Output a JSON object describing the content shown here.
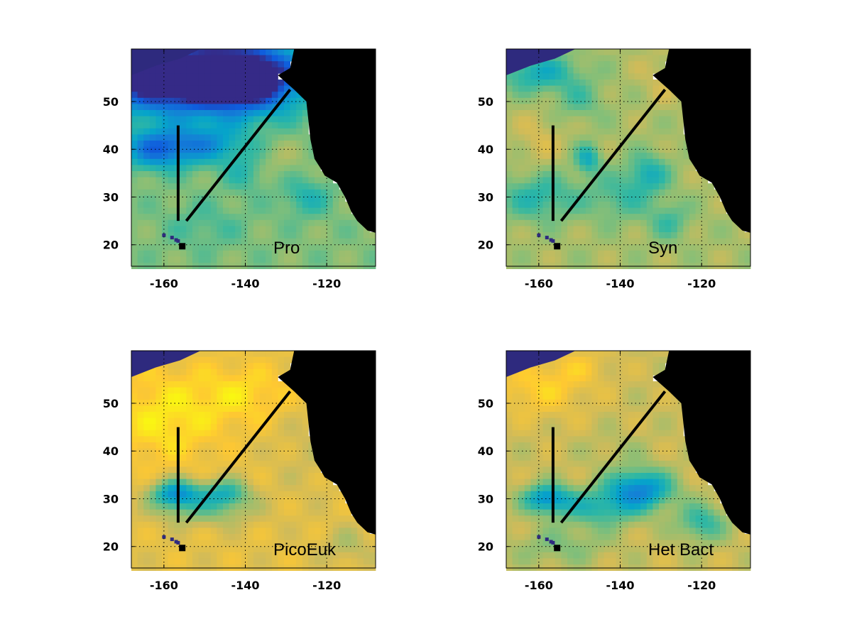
{
  "colors": {
    "colormap": [
      "#352a87",
      "#0f5cdd",
      "#1481d6",
      "#06a4ca",
      "#2eb7a4",
      "#87bf77",
      "#d1bb59",
      "#fec832",
      "#f9fb0e"
    ],
    "land": "#000000",
    "island": "#2e2a7e",
    "transect": "#000000"
  },
  "chart_data": [
    {
      "type": "heatmap",
      "title": "Pro",
      "xlim": [
        -168,
        -108
      ],
      "ylim": [
        15.5,
        61
      ],
      "xticks": [
        -160,
        -140,
        -120
      ],
      "yticks": [
        20,
        30,
        40,
        50
      ],
      "xtick_labels": [
        "-160",
        "-140",
        "-120"
      ],
      "ytick_labels": [
        "20",
        "30",
        "40",
        "50"
      ],
      "grid": true,
      "field": {
        "base": 0.62,
        "blobs": [
          {
            "lon": -160,
            "lat": 55,
            "rlon": 18,
            "rlat": 7,
            "v": -0.8
          },
          {
            "lon": -140,
            "lat": 55,
            "rlon": 14,
            "rlat": 7,
            "v": -0.8
          },
          {
            "lon": -162,
            "lat": 40,
            "rlon": 8,
            "rlat": 4,
            "v": -0.4
          },
          {
            "lon": -150,
            "lat": 41,
            "rlon": 10,
            "rlat": 4,
            "v": -0.3
          },
          {
            "lon": -140,
            "lat": 35,
            "rlon": 5,
            "rlat": 4,
            "v": -0.12
          },
          {
            "lon": -125,
            "lat": 30,
            "rlon": 6,
            "rlat": 4,
            "v": -0.15
          },
          {
            "lon": -132,
            "lat": 38,
            "rlon": 6,
            "rlat": 4,
            "v": 0.06
          },
          {
            "lon": -150,
            "lat": 24,
            "rlon": 10,
            "rlat": 5,
            "v": -0.08
          }
        ]
      },
      "transects": [
        {
          "name": "meridional",
          "points": [
            [
              -156.5,
              45
            ],
            [
              -156.5,
              25
            ]
          ]
        },
        {
          "name": "diagonal",
          "points": [
            [
              -154.5,
              25
            ],
            [
              -129,
              52.5
            ]
          ]
        }
      ]
    },
    {
      "type": "heatmap",
      "title": "Syn",
      "xlim": [
        -168,
        -108
      ],
      "ylim": [
        15.5,
        61
      ],
      "xticks": [
        -160,
        -140,
        -120
      ],
      "yticks": [
        20,
        30,
        40,
        50
      ],
      "xtick_labels": [
        "-160",
        "-140",
        "-120"
      ],
      "ytick_labels": [
        "20",
        "30",
        "40",
        "50"
      ],
      "grid": true,
      "field": {
        "base": 0.68,
        "blobs": [
          {
            "lon": -160,
            "lat": 56,
            "rlon": 10,
            "rlat": 4,
            "v": -0.25
          },
          {
            "lon": -150,
            "lat": 50,
            "rlon": 6,
            "rlat": 4,
            "v": -0.12
          },
          {
            "lon": -160,
            "lat": 30,
            "rlon": 10,
            "rlat": 5,
            "v": -0.2
          },
          {
            "lon": -140,
            "lat": 30,
            "rlon": 8,
            "rlat": 5,
            "v": -0.15
          },
          {
            "lon": -133,
            "lat": 35,
            "rlon": 5,
            "rlat": 4,
            "v": -0.22
          },
          {
            "lon": -128,
            "lat": 25,
            "rlon": 5,
            "rlat": 4,
            "v": -0.15
          },
          {
            "lon": -148,
            "lat": 38,
            "rlon": 3,
            "rlat": 3,
            "v": -0.25
          },
          {
            "lon": -160,
            "lat": 42,
            "rlon": 6,
            "rlat": 6,
            "v": 0.08
          },
          {
            "lon": -130,
            "lat": 55,
            "rlon": 6,
            "rlat": 6,
            "v": 0.06
          }
        ]
      },
      "transects": [
        {
          "name": "meridional",
          "points": [
            [
              -156.5,
              45
            ],
            [
              -156.5,
              25
            ]
          ]
        },
        {
          "name": "diagonal",
          "points": [
            [
              -154.5,
              25
            ],
            [
              -129,
              52.5
            ]
          ]
        }
      ]
    },
    {
      "type": "heatmap",
      "title": "PicoEuk",
      "xlim": [
        -168,
        -108
      ],
      "ylim": [
        15.5,
        61
      ],
      "xticks": [
        -160,
        -140,
        -120
      ],
      "yticks": [
        20,
        30,
        40,
        50
      ],
      "xtick_labels": [
        "-160",
        "-140",
        "-120"
      ],
      "ytick_labels": [
        "20",
        "30",
        "40",
        "50"
      ],
      "grid": true,
      "field": {
        "base": 0.8,
        "blobs": [
          {
            "lon": -160,
            "lat": 47,
            "rlon": 14,
            "rlat": 10,
            "v": 0.15
          },
          {
            "lon": -140,
            "lat": 52,
            "rlon": 12,
            "rlat": 6,
            "v": 0.12
          },
          {
            "lon": -157,
            "lat": 31,
            "rlon": 6,
            "rlat": 3,
            "v": -0.5
          },
          {
            "lon": -145,
            "lat": 31,
            "rlon": 6,
            "rlat": 3,
            "v": -0.35
          },
          {
            "lon": -150,
            "lat": 27,
            "rlon": 12,
            "rlat": 3,
            "v": -0.15
          },
          {
            "lon": -125,
            "lat": 40,
            "rlon": 8,
            "rlat": 10,
            "v": -0.05
          },
          {
            "lon": -115,
            "lat": 20,
            "rlon": 6,
            "rlat": 4,
            "v": -0.1
          }
        ]
      },
      "transects": [
        {
          "name": "meridional",
          "points": [
            [
              -156.5,
              45
            ],
            [
              -156.5,
              25
            ]
          ]
        },
        {
          "name": "diagonal",
          "points": [
            [
              -154.5,
              25
            ],
            [
              -129,
              52.5
            ]
          ]
        }
      ]
    },
    {
      "type": "heatmap",
      "title": "Het Bact",
      "xlim": [
        -168,
        -108
      ],
      "ylim": [
        15.5,
        61
      ],
      "xticks": [
        -160,
        -140,
        -120
      ],
      "yticks": [
        20,
        30,
        40,
        50
      ],
      "xtick_labels": [
        "-160",
        "-140",
        "-120"
      ],
      "ytick_labels": [
        "20",
        "30",
        "40",
        "50"
      ],
      "grid": true,
      "field": {
        "base": 0.74,
        "blobs": [
          {
            "lon": -160,
            "lat": 53,
            "rlon": 12,
            "rlat": 6,
            "v": 0.15
          },
          {
            "lon": -150,
            "lat": 58,
            "rlon": 8,
            "rlat": 4,
            "v": 0.08
          },
          {
            "lon": -135,
            "lat": 32,
            "rlon": 8,
            "rlat": 4,
            "v": -0.45
          },
          {
            "lon": -158,
            "lat": 30,
            "rlon": 6,
            "rlat": 3,
            "v": -0.4
          },
          {
            "lon": -145,
            "lat": 28,
            "rlon": 10,
            "rlat": 4,
            "v": -0.25
          },
          {
            "lon": -120,
            "lat": 25,
            "rlon": 6,
            "rlat": 4,
            "v": -0.25
          },
          {
            "lon": -155,
            "lat": 20,
            "rlon": 12,
            "rlat": 4,
            "v": -0.12
          },
          {
            "lon": -140,
            "lat": 40,
            "rlon": 8,
            "rlat": 4,
            "v": -0.05
          }
        ]
      },
      "transects": [
        {
          "name": "meridional",
          "points": [
            [
              -156.5,
              45
            ],
            [
              -156.5,
              25
            ]
          ]
        },
        {
          "name": "diagonal",
          "points": [
            [
              -154.5,
              25
            ],
            [
              -129,
              52.5
            ]
          ]
        }
      ]
    }
  ],
  "coastline": [
    [
      -108,
      61
    ],
    [
      -128,
      61
    ],
    [
      -129,
      57
    ],
    [
      -132,
      55.5
    ],
    [
      -128,
      52.5
    ],
    [
      -125,
      50
    ],
    [
      -124.5,
      46
    ],
    [
      -124,
      42
    ],
    [
      -123,
      38
    ],
    [
      -121.5,
      36
    ],
    [
      -120.5,
      34.5
    ],
    [
      -117.5,
      33
    ],
    [
      -115.5,
      30
    ],
    [
      -114,
      27
    ],
    [
      -112.5,
      25
    ],
    [
      -110,
      23
    ],
    [
      -108,
      22.5
    ]
  ],
  "gulf_coast": [
    [
      -115,
      31.5
    ],
    [
      -113,
      29
    ],
    [
      -111,
      26
    ],
    [
      -109.5,
      24
    ],
    [
      -108,
      23.2
    ],
    [
      -108,
      22
    ]
  ],
  "alaska_coast": [
    [
      -168,
      55.5
    ],
    [
      -162,
      57.5
    ],
    [
      -156,
      59
    ],
    [
      -151,
      61
    ],
    [
      -168,
      61
    ]
  ],
  "hawaii_islands": [
    [
      -160,
      22
    ],
    [
      -158,
      21.5
    ],
    [
      -157,
      21
    ],
    [
      -156.5,
      20.8
    ],
    [
      -155.5,
      19.7
    ]
  ]
}
